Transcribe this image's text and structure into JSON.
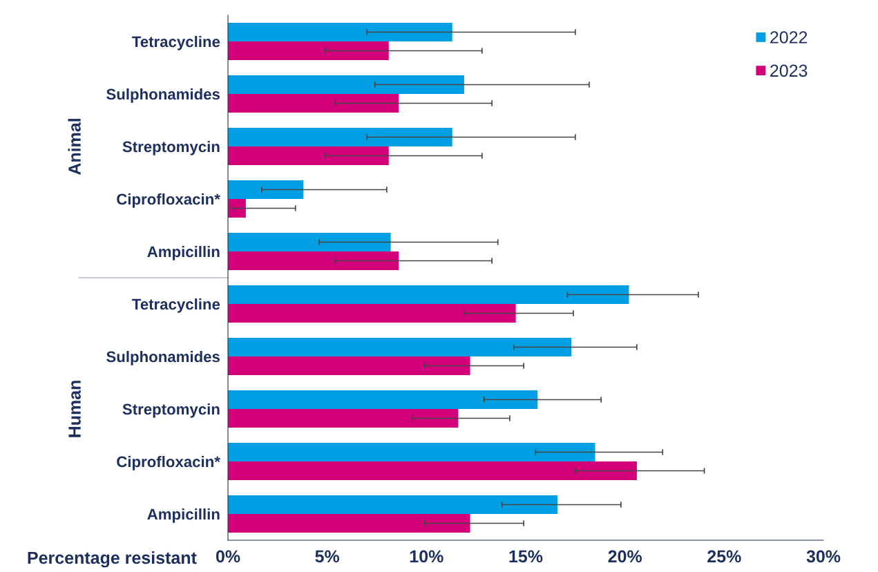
{
  "chart_data": {
    "type": "bar",
    "orientation": "horizontal",
    "xlabel": "Percentage resistant",
    "categories": [
      "Tetracycline",
      "Sulphonamides",
      "Streptomycin",
      "Ciprofloxacin*",
      "Ampicillin",
      "Tetracycline",
      "Sulphonamides",
      "Streptomycin",
      "Ciprofloxacin*",
      "Ampicillin"
    ],
    "series": [
      {
        "name": "2022",
        "color": "#009fe3",
        "values": [
          11.3,
          11.9,
          11.3,
          3.8,
          8.2,
          20.2,
          17.3,
          15.6,
          18.5,
          16.6
        ],
        "errors": [
          [
            7.0,
            17.5
          ],
          [
            7.4,
            18.2
          ],
          [
            7.0,
            17.5
          ],
          [
            1.7,
            8.0
          ],
          [
            4.6,
            13.6
          ],
          [
            17.1,
            23.7
          ],
          [
            14.4,
            20.6
          ],
          [
            12.9,
            18.8
          ],
          [
            15.5,
            21.9
          ],
          [
            13.8,
            19.8
          ]
        ]
      },
      {
        "name": "2023",
        "color": "#d4007a",
        "values": [
          8.1,
          8.6,
          8.1,
          0.9,
          8.6,
          14.5,
          12.2,
          11.6,
          20.6,
          12.2
        ],
        "errors": [
          [
            4.9,
            12.8
          ],
          [
            5.4,
            13.3
          ],
          [
            4.9,
            12.8
          ],
          [
            0.2,
            3.4
          ],
          [
            5.4,
            13.3
          ],
          [
            11.9,
            17.4
          ],
          [
            9.9,
            14.9
          ],
          [
            9.3,
            14.2
          ],
          [
            17.5,
            24.0
          ],
          [
            9.9,
            14.9
          ]
        ]
      }
    ],
    "xlim": [
      0,
      30
    ],
    "xticks": [
      {
        "value": 0,
        "label": "0%"
      },
      {
        "value": 5,
        "label": "5%"
      },
      {
        "value": 10,
        "label": "10%"
      },
      {
        "value": 15,
        "label": "15%"
      },
      {
        "value": 20,
        "label": "20%"
      },
      {
        "value": 25,
        "label": "25%"
      },
      {
        "value": 30,
        "label": "30%"
      }
    ],
    "annotations": [
      "Animal",
      "Human"
    ],
    "legend": "top right",
    "grid": false
  }
}
